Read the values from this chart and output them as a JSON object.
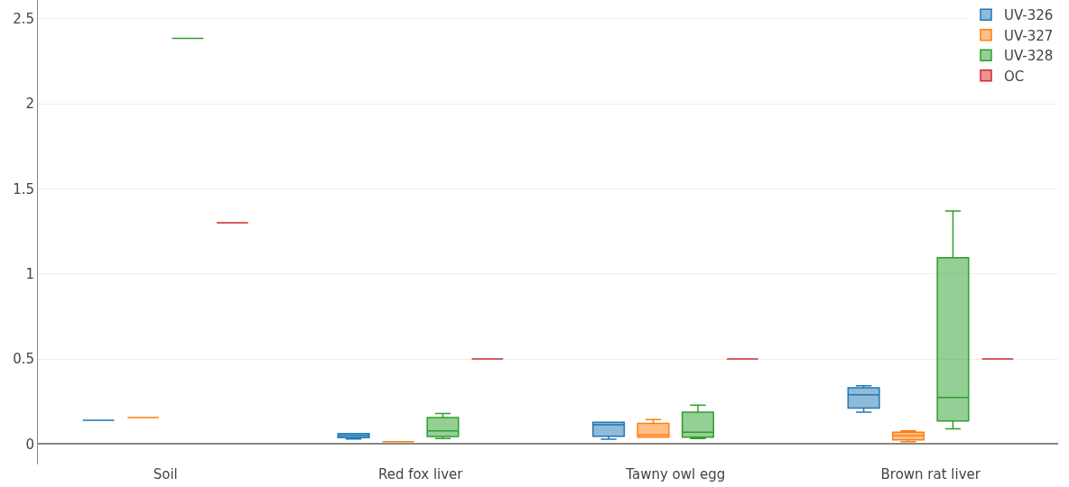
{
  "chart_data": {
    "type": "box",
    "categories": [
      "Soil",
      "Red fox liver",
      "Tawny owl egg",
      "Brown rat liver"
    ],
    "series": [
      {
        "name": "UV-326",
        "color": "#1f77b4",
        "boxes": [
          {
            "low": 0.14,
            "q1": 0.14,
            "median": 0.14,
            "q3": 0.14,
            "high": 0.14
          },
          {
            "low": 0.03,
            "q1": 0.038,
            "median": 0.05,
            "q3": 0.062,
            "high": 0.062
          },
          {
            "low": 0.028,
            "q1": 0.046,
            "median": 0.113,
            "q3": 0.128,
            "high": 0.128
          },
          {
            "low": 0.187,
            "q1": 0.211,
            "median": 0.29,
            "q3": 0.331,
            "high": 0.343
          }
        ]
      },
      {
        "name": "UV-327",
        "color": "#ff7f0e",
        "boxes": [
          {
            "low": 0.155,
            "q1": 0.155,
            "median": 0.155,
            "q3": 0.155,
            "high": 0.155
          },
          {
            "low": 0.014,
            "q1": 0.014,
            "median": 0.014,
            "q3": 0.014,
            "high": 0.014
          },
          {
            "low": 0.04,
            "q1": 0.04,
            "median": 0.053,
            "q3": 0.121,
            "high": 0.144
          },
          {
            "low": 0.014,
            "q1": 0.025,
            "median": 0.049,
            "q3": 0.07,
            "high": 0.078
          }
        ]
      },
      {
        "name": "UV-328",
        "color": "#2ca02c",
        "boxes": [
          {
            "low": 2.385,
            "q1": 2.385,
            "median": 2.385,
            "q3": 2.385,
            "high": 2.385
          },
          {
            "low": 0.033,
            "q1": 0.044,
            "median": 0.078,
            "q3": 0.155,
            "high": 0.18
          },
          {
            "low": 0.033,
            "q1": 0.041,
            "median": 0.07,
            "q3": 0.188,
            "high": 0.229
          },
          {
            "low": 0.09,
            "q1": 0.136,
            "median": 0.273,
            "q3": 1.095,
            "high": 1.37
          }
        ]
      },
      {
        "name": "OC",
        "color": "#d62728",
        "boxes": [
          {
            "low": 1.3,
            "q1": 1.3,
            "median": 1.3,
            "q3": 1.3,
            "high": 1.3
          },
          {
            "low": 0.5,
            "q1": 0.5,
            "median": 0.5,
            "q3": 0.5,
            "high": 0.5
          },
          {
            "low": 0.5,
            "q1": 0.5,
            "median": 0.5,
            "q3": 0.5,
            "high": 0.5
          },
          {
            "low": 0.5,
            "q1": 0.5,
            "median": 0.5,
            "q3": 0.5,
            "high": 0.5
          }
        ]
      }
    ],
    "ylim": [
      -0.12,
      2.61
    ],
    "yticks": [
      0,
      0.5,
      1,
      1.5,
      2,
      2.5
    ],
    "grid": "y",
    "legend": "top right"
  }
}
